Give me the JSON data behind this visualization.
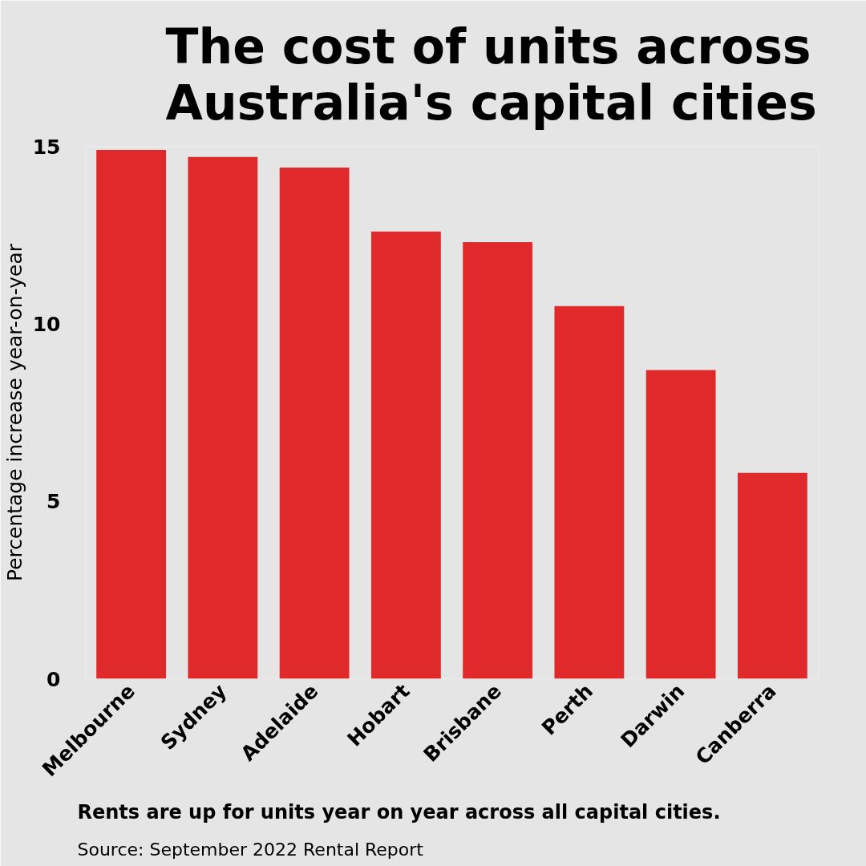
{
  "chart_data": {
    "type": "bar",
    "title": "The cost of units across Australia's capital cities",
    "ylabel": "Percentage increase year-on-year",
    "categories": [
      "Melbourne",
      "Sydney",
      "Adelaide",
      "Hobart",
      "Brisbane",
      "Perth",
      "Darwin",
      "Canberra"
    ],
    "values": [
      14.9,
      14.7,
      14.4,
      12.6,
      12.3,
      10.5,
      8.7,
      5.8
    ],
    "color": "#e0292a",
    "ylim": [
      0,
      15
    ],
    "yticks": [
      0,
      5,
      10,
      15
    ],
    "annotations": [
      "Rents are up for units year on year across all capital cities.",
      "Source: September 2022 Rental Report"
    ]
  }
}
